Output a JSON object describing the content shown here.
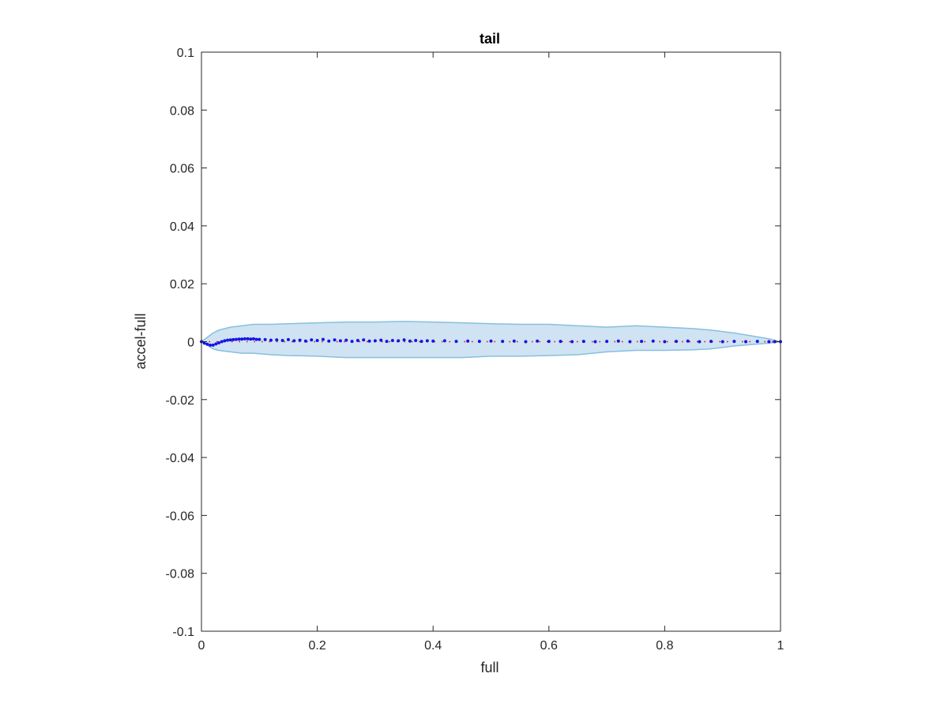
{
  "chart_data": {
    "type": "scatter",
    "title": "tail",
    "xlabel": "full",
    "ylabel": "accel-full",
    "xlim": [
      0,
      1
    ],
    "ylim": [
      -0.1,
      0.1
    ],
    "xticks": [
      0,
      0.2,
      0.4,
      0.6,
      0.8,
      1
    ],
    "xtick_labels": [
      "0",
      "0.2",
      "0.4",
      "0.6",
      "0.8",
      "1"
    ],
    "yticks": [
      -0.1,
      -0.08,
      -0.06,
      -0.04,
      -0.02,
      0,
      0.02,
      0.04,
      0.06,
      0.08,
      0.1
    ],
    "ytick_labels": [
      "-0.1",
      "-0.08",
      "-0.06",
      "-0.04",
      "-0.02",
      "0",
      "0.02",
      "0.04",
      "0.06",
      "0.08",
      "0.1"
    ],
    "grid": false,
    "colors": {
      "band_fill": "#cfe3f2",
      "band_edge": "#87bfe0",
      "points": "#1414e6",
      "reference_line": "#ff0000",
      "axes": "#262626"
    },
    "band": {
      "x": [
        0,
        0.01,
        0.02,
        0.03,
        0.05,
        0.07,
        0.09,
        0.12,
        0.15,
        0.2,
        0.25,
        0.3,
        0.35,
        0.4,
        0.45,
        0.5,
        0.55,
        0.6,
        0.65,
        0.7,
        0.75,
        0.8,
        0.85,
        0.88,
        0.92,
        0.95,
        0.98,
        1.0
      ],
      "upper": [
        0,
        0.0015,
        0.003,
        0.004,
        0.005,
        0.0055,
        0.006,
        0.006,
        0.0062,
        0.0065,
        0.0068,
        0.0068,
        0.007,
        0.0068,
        0.0065,
        0.0062,
        0.006,
        0.006,
        0.0055,
        0.005,
        0.0055,
        0.005,
        0.0045,
        0.004,
        0.003,
        0.002,
        0.001,
        0
      ],
      "lower": [
        0,
        -0.0012,
        -0.0025,
        -0.003,
        -0.0035,
        -0.004,
        -0.004,
        -0.0045,
        -0.0048,
        -0.005,
        -0.0055,
        -0.0055,
        -0.0055,
        -0.0055,
        -0.0055,
        -0.005,
        -0.005,
        -0.0048,
        -0.0045,
        -0.0035,
        -0.003,
        -0.003,
        -0.0028,
        -0.0025,
        -0.0015,
        -0.001,
        -0.0005,
        0
      ]
    },
    "series": [
      {
        "x": [
          0,
          0.005,
          0.01,
          0.015,
          0.02,
          0.025,
          0.03,
          0.035,
          0.04,
          0.045,
          0.05,
          0.055,
          0.06,
          0.065,
          0.07,
          0.075,
          0.08,
          0.085,
          0.09,
          0.095,
          0.1,
          0.11,
          0.12,
          0.13,
          0.14,
          0.15,
          0.16,
          0.17,
          0.18,
          0.19,
          0.2,
          0.21,
          0.22,
          0.23,
          0.24,
          0.25,
          0.26,
          0.27,
          0.28,
          0.29,
          0.3,
          0.31,
          0.32,
          0.33,
          0.34,
          0.35,
          0.36,
          0.37,
          0.38,
          0.39,
          0.4,
          0.42,
          0.44,
          0.46,
          0.48,
          0.5,
          0.52,
          0.54,
          0.56,
          0.58,
          0.6,
          0.62,
          0.64,
          0.66,
          0.68,
          0.7,
          0.72,
          0.74,
          0.76,
          0.78,
          0.8,
          0.82,
          0.84,
          0.86,
          0.88,
          0.9,
          0.92,
          0.94,
          0.96,
          0.98,
          0.99,
          1.0
        ],
        "y": [
          0,
          -0.0005,
          -0.0009,
          -0.0012,
          -0.0012,
          -0.0008,
          -0.0004,
          0,
          0.0003,
          0.0005,
          0.0006,
          0.0007,
          0.0008,
          0.0009,
          0.0009,
          0.001,
          0.001,
          0.0009,
          0.001,
          0.0008,
          0.0008,
          0.0007,
          0.0005,
          0.0006,
          0.0004,
          0.0007,
          0.0003,
          0.0005,
          0.0002,
          0.0006,
          0.0004,
          0.0008,
          0.0002,
          0.0006,
          0.0003,
          0.0005,
          0.0001,
          0.0004,
          0.0006,
          0.0002,
          0.0003,
          0.0005,
          0.0001,
          0.0004,
          0.0003,
          0.0006,
          0.0002,
          0.0004,
          0.0001,
          0.0003,
          0.0002,
          0.0003,
          0.0001,
          0.0002,
          0.0001,
          0.0002,
          0.0001,
          0.0002,
          0,
          0.0002,
          0.0001,
          0.0001,
          0,
          0.0001,
          0,
          0.0001,
          0.0002,
          0,
          0.0001,
          0.0002,
          0,
          0.0001,
          0.0002,
          0,
          0.0001,
          0,
          0.0001,
          0,
          0.0001,
          0,
          0,
          0
        ]
      }
    ],
    "reference_line": {
      "y": 0
    }
  }
}
